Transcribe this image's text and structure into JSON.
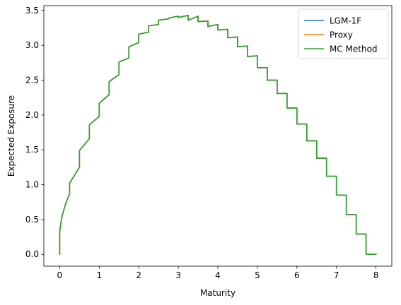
{
  "chart_data": {
    "type": "line",
    "xlabel": "Maturity",
    "ylabel": "Expected Exposure",
    "xlim": [
      -0.4,
      8.4
    ],
    "ylim": [
      -0.17,
      3.57
    ],
    "xticks": [
      0,
      1,
      2,
      3,
      4,
      5,
      6,
      7,
      8
    ],
    "xtick_labels": [
      "0",
      "1",
      "2",
      "3",
      "4",
      "5",
      "6",
      "7",
      "8"
    ],
    "yticks": [
      0.0,
      0.5,
      1.0,
      1.5,
      2.0,
      2.5,
      3.0,
      3.5
    ],
    "ytick_labels": [
      "0.0",
      "0.5",
      "1.0",
      "1.5",
      "2.0",
      "2.5",
      "3.0",
      "3.5"
    ],
    "grid": false,
    "legend_position": "top-right",
    "x": [
      0,
      0,
      0.05,
      0.1,
      0.15,
      0.2,
      0.25,
      0.25,
      0.5,
      0.5,
      0.75,
      0.75,
      1.0,
      1.0,
      1.25,
      1.25,
      1.5,
      1.5,
      1.75,
      1.75,
      2.0,
      2.0,
      2.25,
      2.25,
      2.5,
      2.5,
      2.75,
      2.75,
      3.0,
      3.0,
      3.25,
      3.25,
      3.5,
      3.5,
      3.75,
      3.75,
      4.0,
      4.0,
      4.25,
      4.25,
      4.5,
      4.5,
      4.75,
      4.75,
      5.0,
      5.0,
      5.25,
      5.25,
      5.5,
      5.5,
      5.75,
      5.75,
      6.0,
      6.0,
      6.25,
      6.25,
      6.5,
      6.5,
      6.75,
      6.75,
      7.0,
      7.0,
      7.25,
      7.25,
      7.5,
      7.5,
      7.75,
      7.75,
      8.0
    ],
    "series": [
      {
        "name": "LGM-1F",
        "color": "#1f77b4",
        "values": [
          0.0,
          0.32,
          0.52,
          0.63,
          0.72,
          0.8,
          0.86,
          1.02,
          1.25,
          1.49,
          1.66,
          1.86,
          1.98,
          2.17,
          2.29,
          2.48,
          2.58,
          2.76,
          2.82,
          2.98,
          3.04,
          3.16,
          3.19,
          3.28,
          3.3,
          3.36,
          3.38,
          3.39,
          3.42,
          3.4,
          3.43,
          3.36,
          3.42,
          3.34,
          3.35,
          3.27,
          3.3,
          3.22,
          3.23,
          3.11,
          3.12,
          2.98,
          2.99,
          2.84,
          2.85,
          2.68,
          2.68,
          2.5,
          2.5,
          2.31,
          2.31,
          2.1,
          2.1,
          1.87,
          1.87,
          1.63,
          1.63,
          1.38,
          1.38,
          1.12,
          1.12,
          0.85,
          0.85,
          0.57,
          0.57,
          0.29,
          0.29,
          0.0,
          0.0
        ]
      },
      {
        "name": "Proxy",
        "color": "#ff7f0e",
        "values": [
          0.0,
          0.32,
          0.52,
          0.63,
          0.72,
          0.8,
          0.86,
          1.02,
          1.25,
          1.49,
          1.66,
          1.86,
          1.98,
          2.17,
          2.29,
          2.48,
          2.58,
          2.76,
          2.82,
          2.98,
          3.04,
          3.16,
          3.19,
          3.28,
          3.3,
          3.36,
          3.38,
          3.39,
          3.42,
          3.4,
          3.43,
          3.36,
          3.42,
          3.34,
          3.35,
          3.27,
          3.3,
          3.22,
          3.23,
          3.11,
          3.12,
          2.98,
          2.99,
          2.84,
          2.85,
          2.68,
          2.68,
          2.5,
          2.5,
          2.31,
          2.31,
          2.1,
          2.1,
          1.87,
          1.87,
          1.63,
          1.63,
          1.38,
          1.38,
          1.12,
          1.12,
          0.85,
          0.85,
          0.57,
          0.57,
          0.29,
          0.29,
          0.0,
          0.0
        ]
      },
      {
        "name": "MC Method",
        "color": "#2ca02c",
        "values": [
          0.0,
          0.32,
          0.52,
          0.63,
          0.72,
          0.8,
          0.86,
          1.02,
          1.25,
          1.49,
          1.66,
          1.86,
          1.98,
          2.17,
          2.29,
          2.48,
          2.58,
          2.76,
          2.82,
          2.98,
          3.04,
          3.16,
          3.19,
          3.28,
          3.3,
          3.36,
          3.38,
          3.39,
          3.42,
          3.4,
          3.43,
          3.36,
          3.42,
          3.34,
          3.35,
          3.27,
          3.3,
          3.22,
          3.23,
          3.11,
          3.12,
          2.98,
          2.99,
          2.84,
          2.85,
          2.68,
          2.68,
          2.5,
          2.5,
          2.31,
          2.31,
          2.1,
          2.1,
          1.87,
          1.87,
          1.63,
          1.63,
          1.38,
          1.38,
          1.12,
          1.12,
          0.85,
          0.85,
          0.57,
          0.57,
          0.29,
          0.29,
          0.0,
          0.0
        ]
      }
    ]
  }
}
